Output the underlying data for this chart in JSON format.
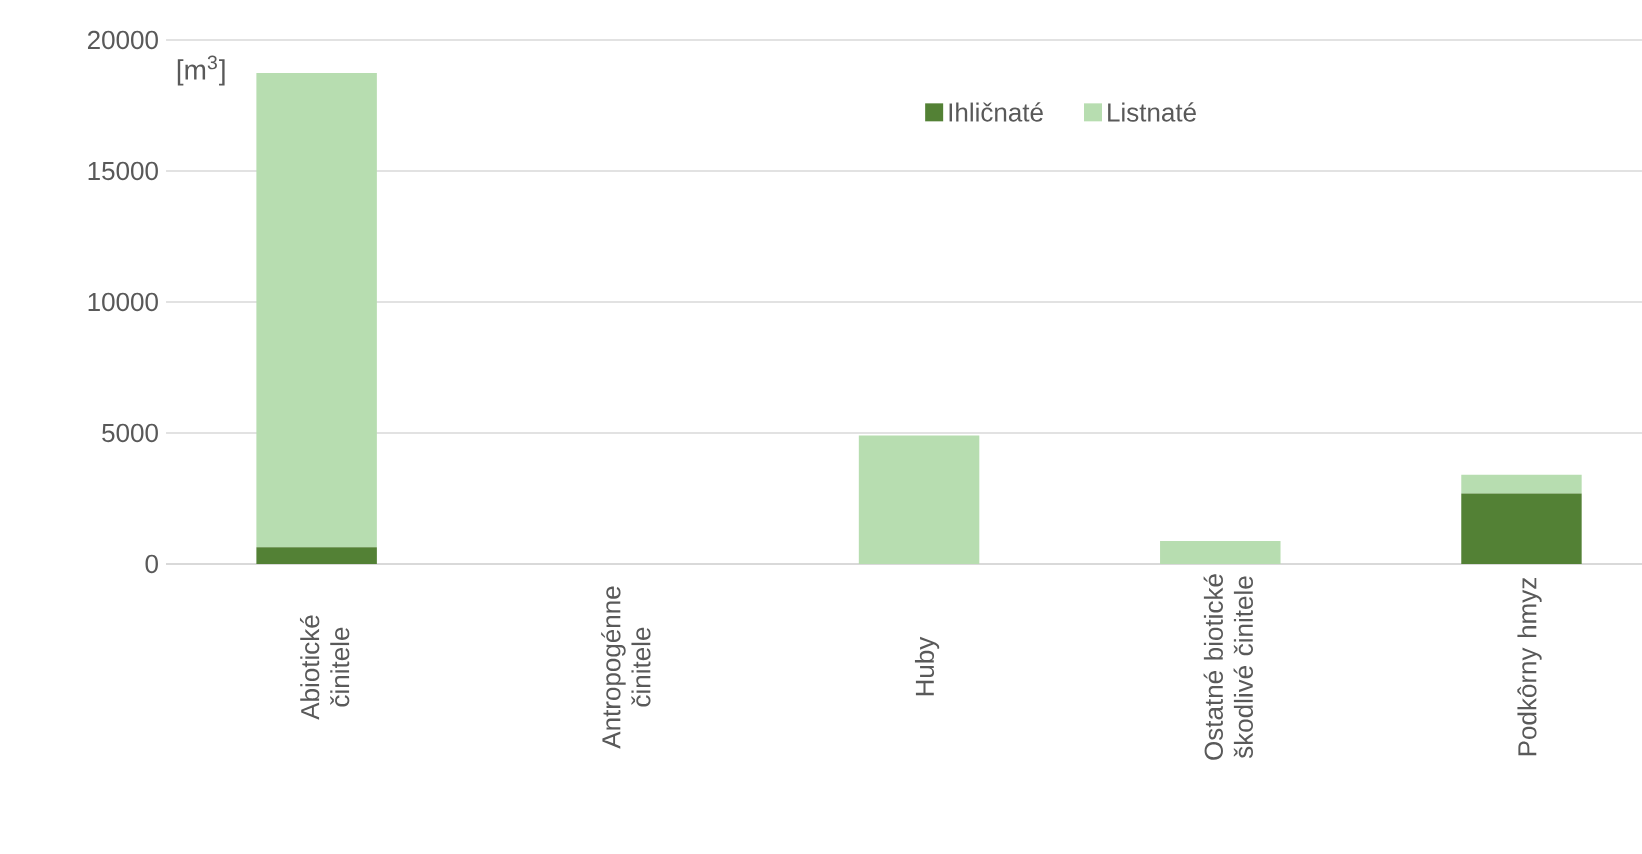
{
  "chart_data": {
    "type": "bar",
    "stacked": true,
    "ylabel": "[m$^{3}$]",
    "categories": [
      "Abiotické činitele",
      "Antropogénne činitele",
      "Huby",
      "Ostatné biotické škodlivé činitele",
      "Podkôrny hmyz"
    ],
    "series": [
      {
        "name": "Ihličnaté",
        "color": "#538135",
        "values": [
          640,
          0,
          0,
          0,
          2690
        ]
      },
      {
        "name": "Listnaté",
        "color": "#b7ddb0",
        "values": [
          18100,
          0,
          4900,
          880,
          720
        ]
      }
    ],
    "ylim": [
      0,
      20000
    ],
    "yticks": [
      0,
      5000,
      10000,
      15000,
      20000
    ],
    "grid": "y",
    "legend": "top"
  }
}
